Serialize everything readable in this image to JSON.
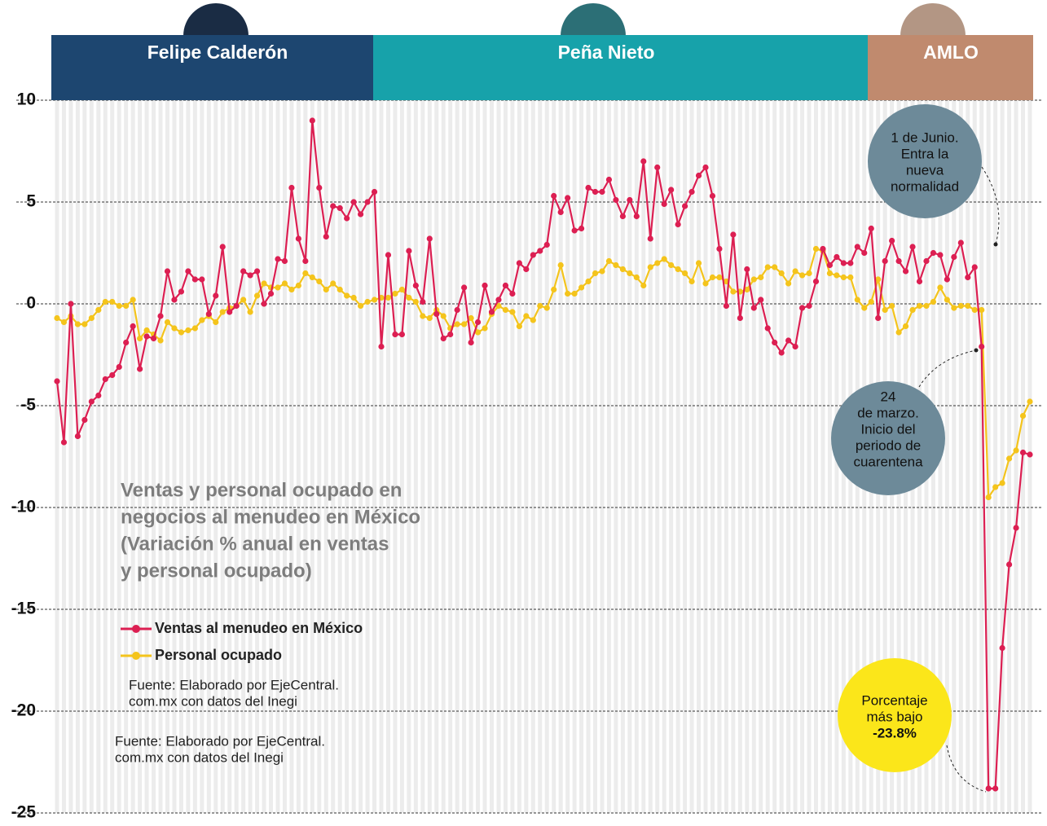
{
  "chart_data": {
    "type": "line",
    "title_lines": [
      "Ventas y personal ocupado en",
      "negocios al menudeo en México",
      "(Variación % anual en ventas",
      "y personal ocupado)"
    ],
    "periods": [
      "Felipe Calderón",
      "Peña Nieto",
      "AMLO"
    ],
    "series": [
      {
        "name": "Ventas al menudeo en México",
        "color": "#dc1f52",
        "values": [
          -3.8,
          -6.8,
          0,
          -6.5,
          -5.7,
          -4.8,
          -4.5,
          -3.7,
          -3.5,
          -3.1,
          -1.9,
          -1.1,
          -3.2,
          -1.6,
          -1.7,
          -0.6,
          1.6,
          0.2,
          0.6,
          1.6,
          1.2,
          1.2,
          -0.5,
          0.4,
          2.8,
          -0.4,
          -0.1,
          1.6,
          1.4,
          1.6,
          0,
          0.5,
          2.2,
          2.1,
          5.7,
          3.2,
          2.1,
          9.0,
          5.7,
          3.3,
          4.8,
          4.7,
          4.2,
          5.0,
          4.4,
          5.0,
          5.5,
          -2.1,
          2.4,
          -1.5,
          -1.5,
          2.6,
          0.9,
          0.1,
          3.2,
          -0.5,
          -1.7,
          -1.5,
          -0.3,
          0.8,
          -1.9,
          -0.9,
          0.9,
          -0.4,
          0.2,
          0.9,
          0.5,
          2.0,
          1.7,
          2.4,
          2.6,
          2.9,
          5.3,
          4.5,
          5.2,
          3.6,
          3.7,
          5.7,
          5.5,
          5.5,
          6.1,
          5.1,
          4.3,
          5.1,
          4.3,
          7.0,
          3.2,
          6.7,
          4.9,
          5.6,
          3.9,
          4.8,
          5.5,
          6.3,
          6.7,
          5.3,
          2.7,
          -0.1,
          3.4,
          -0.7,
          1.7,
          -0.2,
          0.2,
          -1.2,
          -1.9,
          -2.4,
          -1.8,
          -2.1,
          -0.2,
          -0.1,
          1.1,
          2.7,
          1.9,
          2.3,
          2.0,
          2.0,
          2.8,
          2.5,
          3.7,
          -0.7,
          2.1,
          3.1,
          2.1,
          1.6,
          2.8,
          1.1,
          2.1,
          2.5,
          2.4,
          1.2,
          2.3,
          3.0,
          1.3,
          1.8,
          -2.1,
          -23.8,
          -23.8,
          -16.9,
          -12.8,
          -11.0,
          -7.3,
          -7.4
        ]
      },
      {
        "name": "Personal ocupado",
        "color": "#f4c41c",
        "values": [
          -0.7,
          -0.9,
          -0.6,
          -1.0,
          -1.0,
          -0.7,
          -0.3,
          0.1,
          0.1,
          -0.1,
          -0.1,
          0.2,
          -1.7,
          -1.3,
          -1.5,
          -1.8,
          -0.9,
          -1.2,
          -1.4,
          -1.3,
          -1.2,
          -0.8,
          -0.6,
          -0.9,
          -0.4,
          -0.2,
          -0.1,
          0.2,
          -0.4,
          0.4,
          1.0,
          0.8,
          0.8,
          1.0,
          0.7,
          0.9,
          1.5,
          1.3,
          1.1,
          0.7,
          1.0,
          0.7,
          0.4,
          0.3,
          -0.1,
          0.1,
          0.2,
          0.3,
          0.3,
          0.5,
          0.7,
          0.3,
          0.1,
          -0.6,
          -0.7,
          -0.3,
          -0.6,
          -1.2,
          -1.0,
          -1.0,
          -0.7,
          -1.4,
          -1.2,
          -0.5,
          -0.1,
          -0.3,
          -0.4,
          -1.1,
          -0.6,
          -0.8,
          -0.1,
          -0.2,
          0.7,
          1.9,
          0.5,
          0.5,
          0.8,
          1.1,
          1.5,
          1.6,
          2.1,
          1.9,
          1.7,
          1.5,
          1.3,
          0.9,
          1.8,
          2.0,
          2.2,
          1.9,
          1.7,
          1.5,
          1.1,
          2.0,
          1.0,
          1.3,
          1.3,
          1.1,
          0.6,
          0.6,
          0.7,
          1.2,
          1.3,
          1.8,
          1.8,
          1.5,
          1.0,
          1.6,
          1.4,
          1.5,
          2.7,
          2.6,
          1.5,
          1.4,
          1.3,
          1.3,
          0.2,
          -0.2,
          0.1,
          1.2,
          -0.3,
          -0.1,
          -1.4,
          -1.1,
          -0.3,
          -0.1,
          -0.1,
          0.1,
          0.8,
          0.2,
          -0.2,
          -0.1,
          -0.1,
          -0.3,
          -0.3,
          -9.5,
          -9.0,
          -8.8,
          -7.6,
          -7.2,
          -5.5,
          -4.8
        ]
      }
    ],
    "ylim": [
      -25,
      10
    ],
    "yticks": [
      10,
      5,
      0,
      -5,
      -10,
      -15,
      -20,
      -25
    ],
    "grid": true,
    "annotations": [
      [
        "1 de Junio.",
        "Entra la",
        "nueva",
        "normalidad"
      ],
      [
        "24",
        "de marzo.",
        "Inicio del",
        "periodo de",
        "cuarentena"
      ],
      [
        "Porcentaje",
        "más bajo"
      ]
    ],
    "lowest_label": "-23.8%",
    "source_lines": [
      [
        "Fuente: Elaborado por EjeCentral.",
        "com.mx con datos del Inegi"
      ],
      [
        "Fuente: Elaborado por EjeCentral.",
        "com.mx con datos del Inegi"
      ]
    ]
  }
}
